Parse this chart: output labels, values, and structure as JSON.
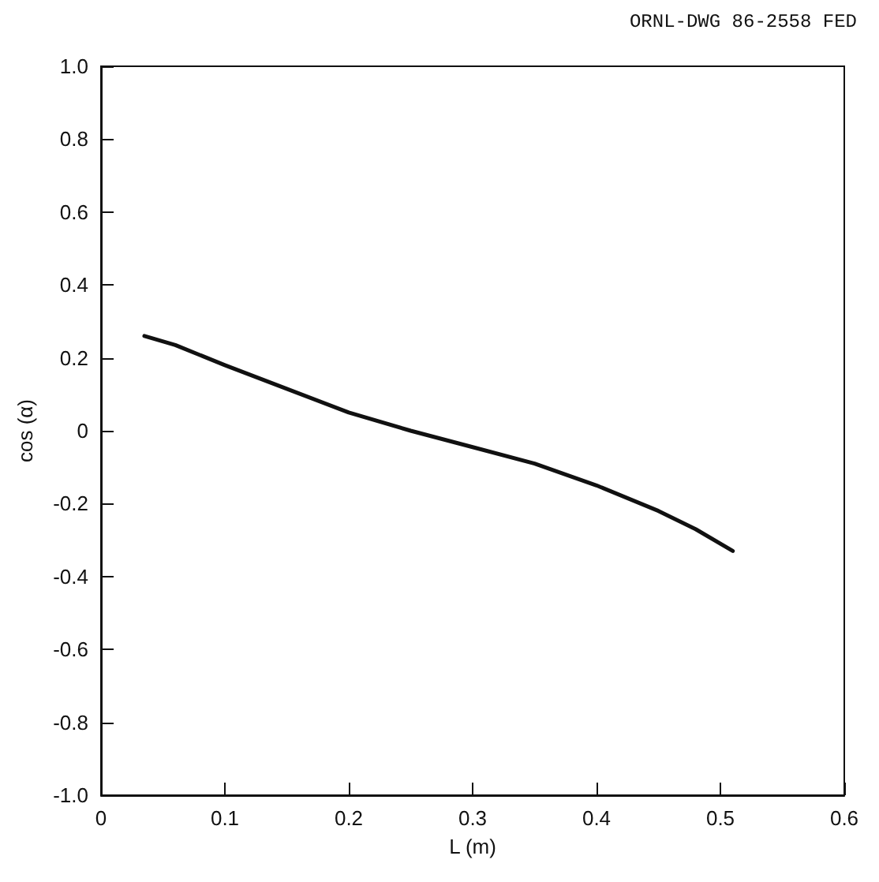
{
  "chart_data": {
    "type": "line",
    "xlabel": "L (m)",
    "ylabel": "cos (α)",
    "annotations": [
      "ORNL-DWG 86-2558 FED"
    ],
    "x": [
      0.035,
      0.06,
      0.1,
      0.15,
      0.2,
      0.25,
      0.3,
      0.35,
      0.4,
      0.45,
      0.48,
      0.51
    ],
    "series": [
      {
        "color": "#111111",
        "values": [
          0.26,
          0.235,
          0.18,
          0.115,
          0.05,
          0.0,
          -0.045,
          -0.09,
          -0.15,
          -0.22,
          -0.27,
          -0.33
        ]
      }
    ],
    "xlim": [
      0,
      0.6
    ],
    "xticks": [
      0,
      0.1,
      0.2,
      0.3,
      0.4,
      0.5,
      0.6
    ],
    "ylim": [
      -1,
      1
    ],
    "yticks": [
      {
        "value": -1,
        "label": "-1.0"
      },
      -0.8,
      -0.6,
      -0.4,
      -0.2,
      0,
      0.2,
      0.4,
      0.6,
      0.8,
      {
        "value": 1,
        "label": "1.0"
      }
    ],
    "grid": false,
    "marker": "none",
    "line_style": "solid"
  }
}
